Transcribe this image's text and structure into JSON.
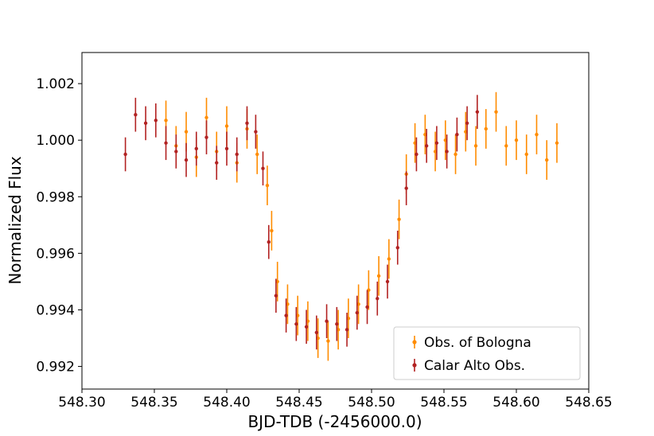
{
  "chart_data": {
    "type": "scatter",
    "title": "",
    "xlabel": "BJD-TDB (-2456000.0)",
    "ylabel": "Normalized Flux",
    "xlim": [
      548.3,
      548.65
    ],
    "ylim": [
      0.9912,
      1.0031
    ],
    "xticks": [
      548.3,
      548.35,
      548.4,
      548.45,
      548.5,
      548.55,
      548.6,
      548.65
    ],
    "xtick_labels": [
      "548.30",
      "548.35",
      "548.40",
      "548.45",
      "548.50",
      "548.55",
      "548.60",
      "548.65"
    ],
    "yticks": [
      0.992,
      0.994,
      0.996,
      0.998,
      1.0,
      1.002
    ],
    "ytick_labels": [
      "0.992",
      "0.994",
      "0.996",
      "0.998",
      "1.000",
      "1.002"
    ],
    "grid": false,
    "legend_position": "bottom-right",
    "error_bars": true,
    "series": [
      {
        "name": "Obs. of Bologna",
        "color": "#ff8c00",
        "x": [
          548.358,
          548.365,
          548.372,
          548.379,
          548.386,
          548.393,
          548.4,
          548.407,
          548.414,
          548.421,
          548.428,
          548.431,
          548.435,
          548.442,
          548.449,
          548.456,
          548.463,
          548.47,
          548.477,
          548.484,
          548.491,
          548.498,
          548.505,
          548.512,
          548.519,
          548.524,
          548.53,
          548.537,
          548.544,
          548.551,
          548.558,
          548.565,
          548.572,
          548.579,
          548.586,
          548.593,
          548.6,
          548.607,
          548.614,
          548.621,
          548.628
        ],
        "y": [
          1.0007,
          0.9998,
          1.0003,
          0.9994,
          1.0008,
          0.9996,
          1.0005,
          0.9992,
          1.0004,
          0.9995,
          0.9984,
          0.9968,
          0.995,
          0.9942,
          0.9938,
          0.9936,
          0.993,
          0.9929,
          0.9933,
          0.9937,
          0.9942,
          0.9947,
          0.9952,
          0.9958,
          0.9972,
          0.9988,
          0.9999,
          1.0002,
          0.9996,
          1.0,
          0.9995,
          1.0003,
          0.9998,
          1.0004,
          1.001,
          0.9998,
          1.0,
          0.9995,
          1.0002,
          0.9993,
          0.9999
        ],
        "err": [
          0.0007,
          0.0007,
          0.0007,
          0.0007,
          0.0007,
          0.0007,
          0.0007,
          0.0007,
          0.0007,
          0.0007,
          0.0007,
          0.0007,
          0.0007,
          0.0007,
          0.0007,
          0.0007,
          0.0007,
          0.0007,
          0.0007,
          0.0007,
          0.0007,
          0.0007,
          0.0007,
          0.0007,
          0.0007,
          0.0007,
          0.0007,
          0.0007,
          0.0007,
          0.0007,
          0.0007,
          0.0007,
          0.0007,
          0.0007,
          0.0007,
          0.0007,
          0.0007,
          0.0007,
          0.0007,
          0.0007,
          0.0007
        ]
      },
      {
        "name": "Calar Alto Obs.",
        "color": "#b22222",
        "x": [
          548.33,
          548.337,
          548.344,
          548.351,
          548.358,
          548.365,
          548.372,
          548.379,
          548.386,
          548.393,
          548.4,
          548.407,
          548.414,
          548.42,
          548.425,
          548.429,
          548.434,
          548.441,
          548.448,
          548.455,
          548.462,
          548.469,
          548.476,
          548.483,
          548.49,
          548.497,
          548.504,
          548.511,
          548.518,
          548.524,
          548.531,
          548.538,
          548.545,
          548.552,
          548.559,
          548.566,
          548.573
        ],
        "y": [
          0.9995,
          1.0009,
          1.0006,
          1.0007,
          0.9999,
          0.9996,
          0.9993,
          0.9997,
          1.0001,
          0.9992,
          0.9997,
          0.9995,
          1.0006,
          1.0003,
          0.999,
          0.9964,
          0.9945,
          0.9938,
          0.9935,
          0.9934,
          0.9932,
          0.9936,
          0.9935,
          0.9933,
          0.9939,
          0.9941,
          0.9944,
          0.995,
          0.9962,
          0.9983,
          0.9995,
          0.9998,
          0.9999,
          0.9996,
          1.0002,
          1.0006,
          1.001
        ],
        "err": [
          0.0006,
          0.0006,
          0.0006,
          0.0006,
          0.0006,
          0.0006,
          0.0006,
          0.0006,
          0.0006,
          0.0006,
          0.0006,
          0.0006,
          0.0006,
          0.0006,
          0.0006,
          0.0006,
          0.0006,
          0.0006,
          0.0006,
          0.0006,
          0.0006,
          0.0006,
          0.0006,
          0.0006,
          0.0006,
          0.0006,
          0.0006,
          0.0006,
          0.0006,
          0.0006,
          0.0006,
          0.0006,
          0.0006,
          0.0006,
          0.0006,
          0.0006,
          0.0006
        ]
      }
    ]
  }
}
